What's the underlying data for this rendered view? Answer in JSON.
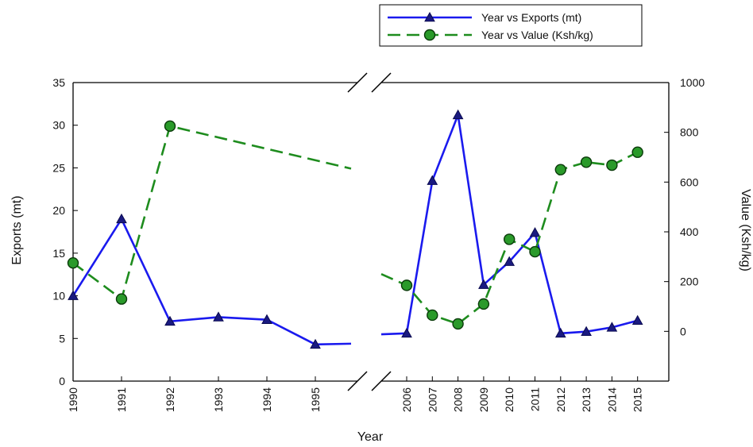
{
  "chart_data": {
    "type": "line",
    "xlabel": "Year",
    "ylabel": "Exports (mt)",
    "y2label": "Value (Ksh/kg)",
    "ylim": [
      0,
      35
    ],
    "y2lim": [
      -200,
      1000
    ],
    "yticks": [
      "0",
      "5",
      "10",
      "15",
      "20",
      "25",
      "30",
      "35"
    ],
    "y2ticks": [
      "0",
      "200",
      "400",
      "600",
      "800",
      "1000"
    ],
    "x_ticks_left": [
      "1990",
      "1991",
      "1992",
      "1993",
      "1994",
      "1995"
    ],
    "x_ticks_right": [
      "2006",
      "2007",
      "2008",
      "2009",
      "2010",
      "2011",
      "2012",
      "2013",
      "2014",
      "2015"
    ],
    "axis_break": true,
    "grid": false,
    "legend_position": "top-right",
    "series": [
      {
        "name": "Year vs Exports (mt)",
        "axis": "left",
        "color": "#1a1aee",
        "line_style": "solid",
        "marker": "triangle",
        "left_points": [
          [
            1990,
            10
          ],
          [
            1991,
            19
          ],
          [
            1992,
            7
          ],
          [
            1993,
            7.5
          ],
          [
            1994,
            7.2
          ],
          [
            1995,
            4.3
          ]
        ],
        "right_points": [
          [
            2006,
            5.6
          ],
          [
            2007,
            23.5
          ],
          [
            2008,
            31.2
          ],
          [
            2009,
            11.3
          ],
          [
            2010,
            14
          ],
          [
            2011,
            17.4
          ],
          [
            2012,
            5.6
          ],
          [
            2013,
            5.8
          ],
          [
            2014,
            6.3
          ],
          [
            2015,
            7.1
          ]
        ]
      },
      {
        "name": "Year vs Value (Ksh/kg)",
        "axis": "right",
        "color": "#1e8c1e",
        "marker_fill": "#2a9a2a",
        "line_style": "dashed",
        "marker": "circle",
        "left_points": [
          [
            1990,
            275
          ],
          [
            1991,
            130
          ],
          [
            1992,
            825
          ]
        ],
        "right_points": [
          [
            2006,
            185
          ],
          [
            2007,
            65
          ],
          [
            2008,
            30
          ],
          [
            2009,
            110
          ],
          [
            2010,
            370
          ],
          [
            2011,
            320
          ],
          [
            2012,
            650
          ],
          [
            2013,
            680
          ],
          [
            2014,
            668
          ],
          [
            2015,
            720
          ]
        ]
      }
    ]
  }
}
